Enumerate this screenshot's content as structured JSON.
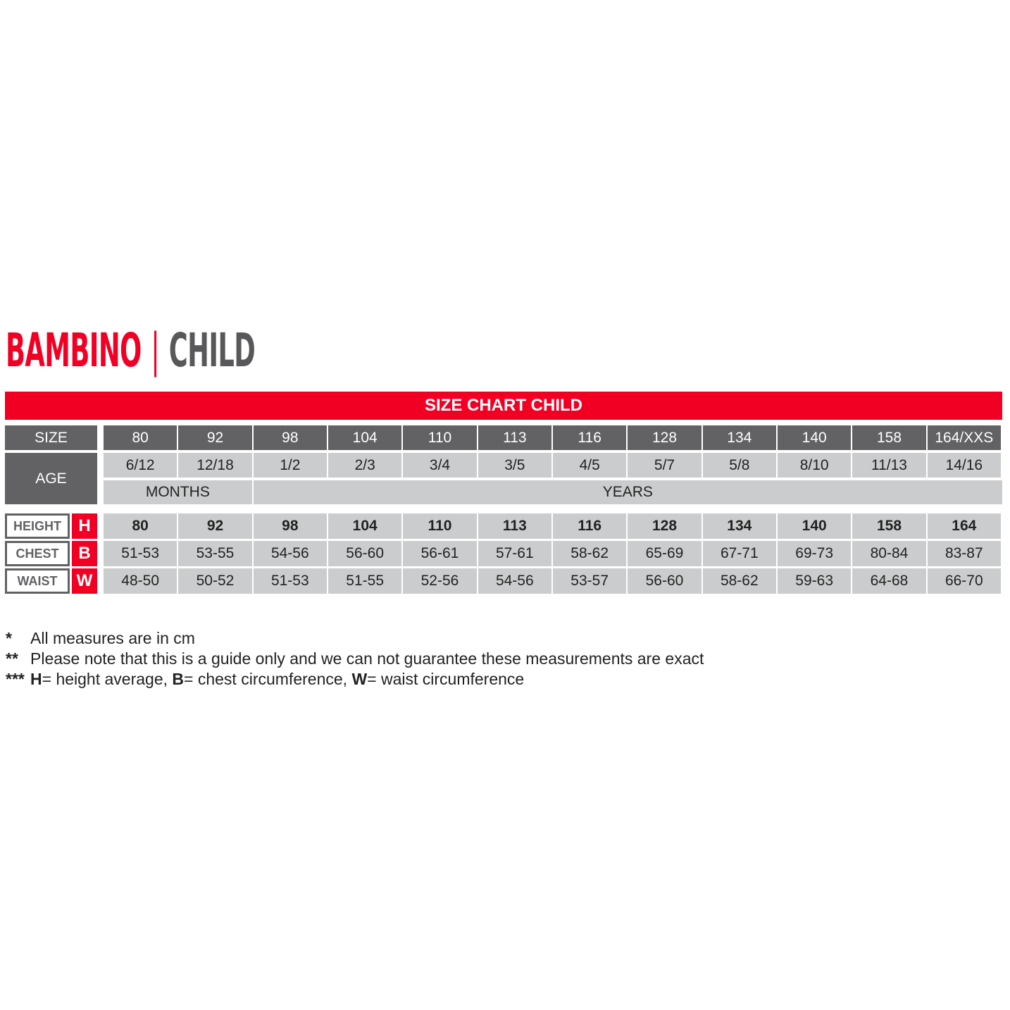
{
  "title": {
    "brand": "BAMBINO",
    "separator": "|",
    "subtitle": "CHILD"
  },
  "colors": {
    "accent": "#f20024",
    "dark": "#626265",
    "light": "#cbcccd"
  },
  "banner": "SIZE CHART CHILD",
  "labels": {
    "size": "SIZE",
    "age": "AGE",
    "months": "MONTHS",
    "years": "YEARS"
  },
  "sizes": [
    "80",
    "92",
    "98",
    "104",
    "110",
    "113",
    "116",
    "128",
    "134",
    "140",
    "158",
    "164/XXS"
  ],
  "ages": [
    "6/12",
    "12/18",
    "1/2",
    "2/3",
    "3/4",
    "3/5",
    "4/5",
    "5/7",
    "5/8",
    "8/10",
    "11/13",
    "14/16"
  ],
  "measures": [
    {
      "label": "HEIGHT",
      "letter": "H",
      "values": [
        "80",
        "92",
        "98",
        "104",
        "110",
        "113",
        "116",
        "128",
        "134",
        "140",
        "158",
        "164"
      ]
    },
    {
      "label": "CHEST",
      "letter": "B",
      "values": [
        "51-53",
        "53-55",
        "54-56",
        "56-60",
        "56-61",
        "57-61",
        "58-62",
        "65-69",
        "67-71",
        "69-73",
        "80-84",
        "83-87"
      ]
    },
    {
      "label": "WAIST",
      "letter": "W",
      "values": [
        "48-50",
        "50-52",
        "51-53",
        "51-55",
        "52-56",
        "54-56",
        "53-57",
        "56-60",
        "58-62",
        "59-63",
        "64-68",
        "66-70"
      ]
    }
  ],
  "notes": [
    {
      "marker": "*",
      "text": "All measures are in cm"
    },
    {
      "marker": "**",
      "text": "Please note that this is a guide only and we can not guarantee these measurements are exact"
    },
    {
      "marker": "***",
      "parts": [
        {
          "b": "H",
          "t": "= height average, "
        },
        {
          "b": "B",
          "t": "= chest circumference, "
        },
        {
          "b": "W",
          "t": "= waist circumference"
        }
      ]
    }
  ]
}
